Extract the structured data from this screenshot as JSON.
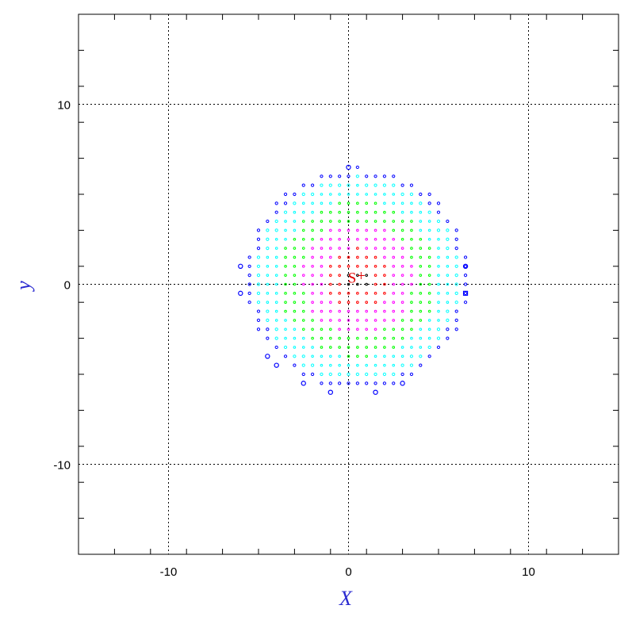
{
  "chart_data": {
    "type": "scatter",
    "title": "",
    "xlabel": "X",
    "ylabel": "y",
    "xlim": [
      -15,
      15
    ],
    "ylim": [
      -15,
      15
    ],
    "major_ticks": [
      -10,
      0,
      10
    ],
    "minor_tick_step": 2,
    "grid": true,
    "x_tick_labels": [
      "-10",
      "0",
      "10"
    ],
    "y_tick_labels": [
      "-10",
      "0",
      "10"
    ],
    "series": [
      {
        "description": "sampled grid points inside the disk, color by ring",
        "grid_step": 0.5,
        "center": [
          0.5,
          0.3
        ],
        "disk_radius": 6.2,
        "ring_colors": [
          "#000000",
          "#ff0000",
          "#ff00ff",
          "#00ff00",
          "#00ffff",
          "#0000ff"
        ],
        "ring_radii": [
          0.6,
          1.7,
          3.1,
          4.4,
          5.7,
          6.3
        ]
      }
    ],
    "edge_markers": [
      {
        "x": 0,
        "y": 6.5,
        "shape": "circle"
      },
      {
        "x": -6,
        "y": 1,
        "shape": "circle"
      },
      {
        "x": -6,
        "y": -0.5,
        "shape": "circle"
      },
      {
        "x": 6.5,
        "y": 1,
        "shape": "circle"
      },
      {
        "x": 6.5,
        "y": -0.5,
        "shape": "square"
      },
      {
        "x": -4.5,
        "y": -4,
        "shape": "circle"
      },
      {
        "x": -4,
        "y": -4.5,
        "shape": "circle"
      },
      {
        "x": -2.5,
        "y": -5.5,
        "shape": "circle"
      },
      {
        "x": -1,
        "y": -6,
        "shape": "circle"
      },
      {
        "x": 1.5,
        "y": -6,
        "shape": "circle"
      },
      {
        "x": 3,
        "y": -5.5,
        "shape": "circle"
      }
    ],
    "annotations": [
      {
        "text": "S",
        "x": 0.2,
        "y": 0.4,
        "color": "#e00000"
      },
      {
        "text": "+",
        "x": 0.7,
        "y": 0.5,
        "color": "#e00000"
      }
    ],
    "colors": {
      "axis": "#000000",
      "grid": "#000000",
      "title_color": "#2a2ad0"
    }
  }
}
